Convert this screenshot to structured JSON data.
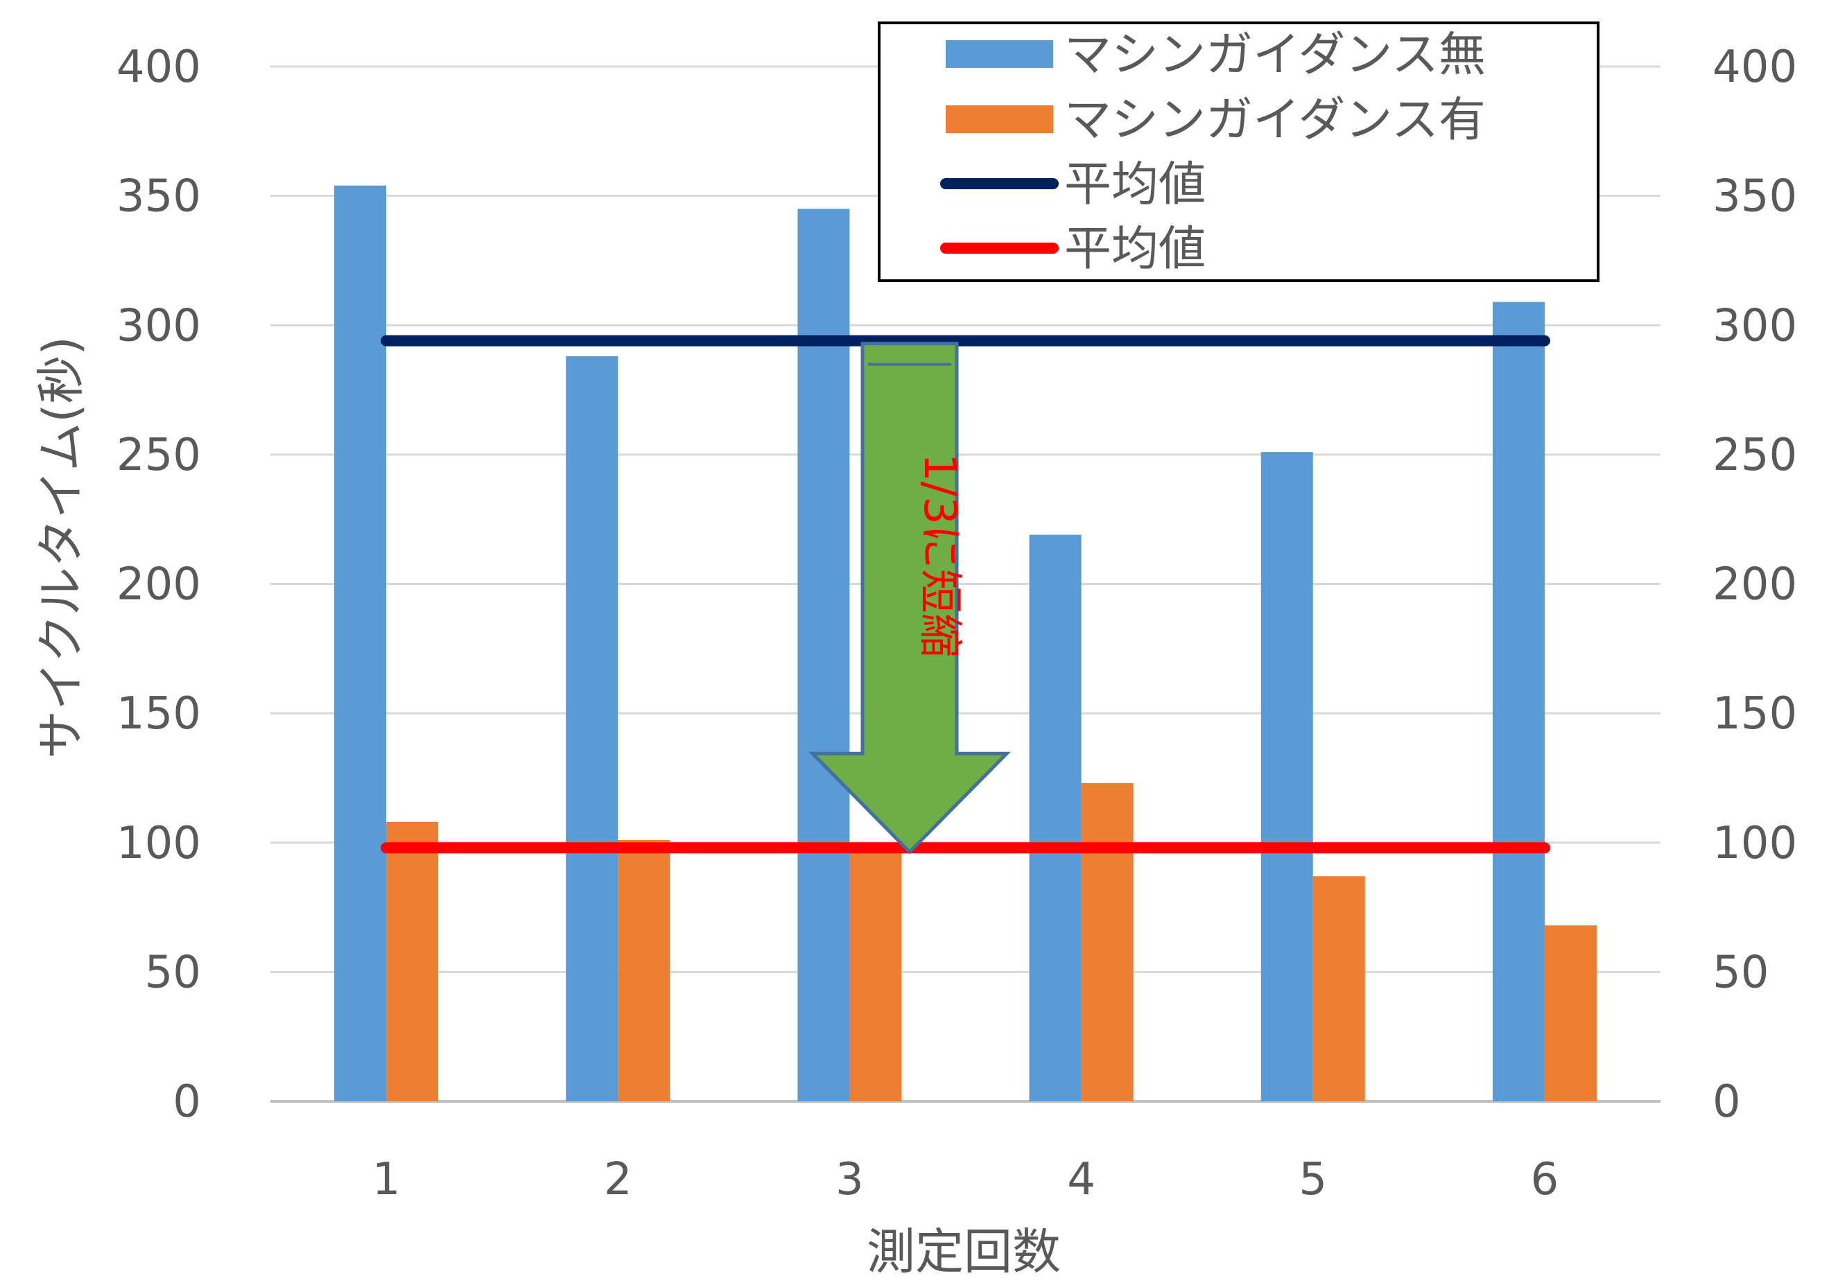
{
  "chart_data": {
    "type": "bar",
    "categories": [
      "1",
      "2",
      "3",
      "4",
      "5",
      "6"
    ],
    "series": [
      {
        "name": "マシンガイダンス無",
        "values": [
          354,
          288,
          345,
          219,
          251,
          309
        ],
        "color": "#5B9BD5"
      },
      {
        "name": "マシンガイダンス有",
        "values": [
          108,
          101,
          100,
          123,
          87,
          68
        ],
        "color": "#ED7D31"
      }
    ],
    "reference_lines": [
      {
        "name": "平均値",
        "value": 294,
        "color": "#002060"
      },
      {
        "name": "平均値",
        "value": 98,
        "color": "#FF0000"
      }
    ],
    "xlabel": "測定回数",
    "ylabel": "サイクルタイム(秒)",
    "ylim": [
      0,
      400
    ],
    "yticks": [
      0,
      50,
      100,
      150,
      200,
      250,
      300,
      350,
      400
    ],
    "secondary_yticks": [
      0,
      50,
      100,
      150,
      200,
      250,
      300,
      350,
      400
    ],
    "grid": true,
    "legend_position": "top-right",
    "annotation": {
      "text": "1/3に短縮",
      "text_color": "#FF0000",
      "arrow_color": "#70AD47",
      "arrow_outline": "#41719C"
    }
  }
}
